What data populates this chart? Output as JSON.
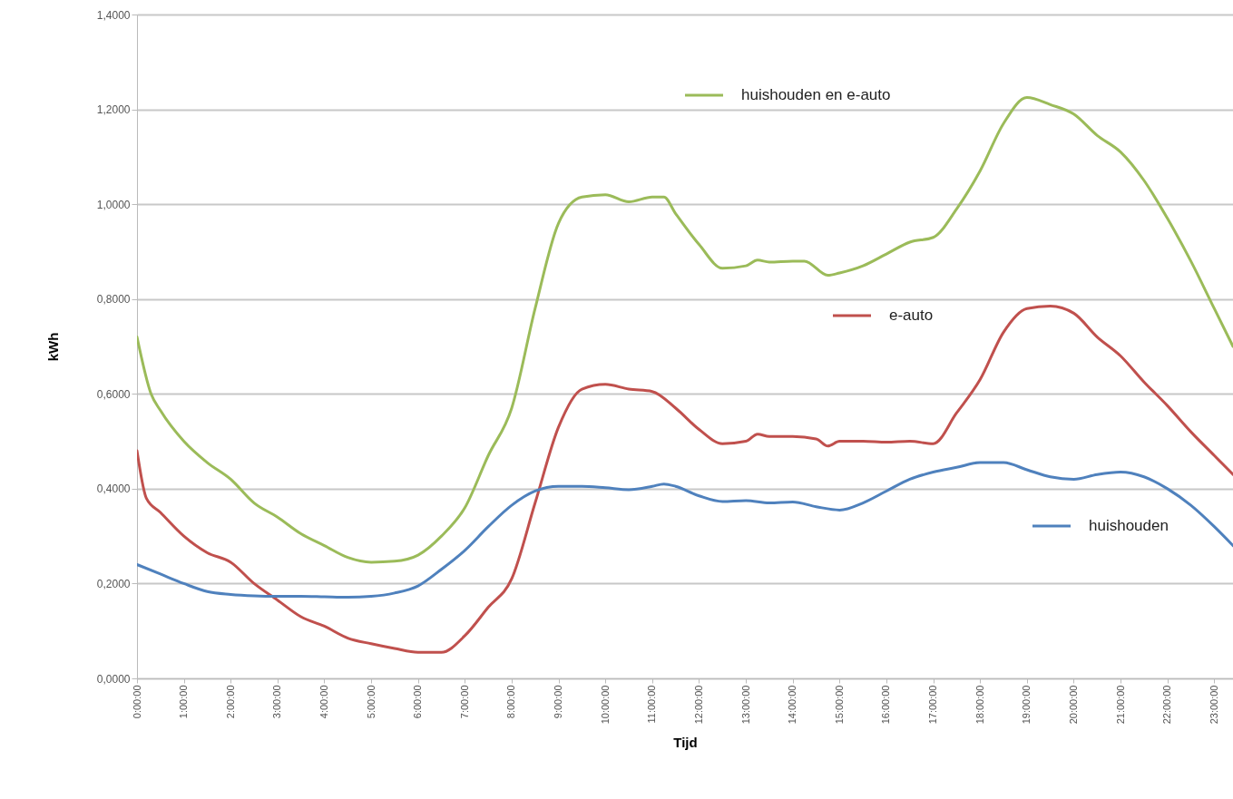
{
  "chart_data": {
    "type": "line",
    "xlabel": "Tijd",
    "ylabel": "kWh",
    "xlim": [
      0,
      23.4
    ],
    "ylim": [
      0,
      1.4
    ],
    "xticks": [
      {
        "value": 0,
        "label": "0:00:00"
      },
      {
        "value": 1,
        "label": "1:00:00"
      },
      {
        "value": 2,
        "label": "2:00:00"
      },
      {
        "value": 3,
        "label": "3:00:00"
      },
      {
        "value": 4,
        "label": "4:00:00"
      },
      {
        "value": 5,
        "label": "5:00:00"
      },
      {
        "value": 6,
        "label": "6:00:00"
      },
      {
        "value": 7,
        "label": "7:00:00"
      },
      {
        "value": 8,
        "label": "8:00:00"
      },
      {
        "value": 9,
        "label": "9:00:00"
      },
      {
        "value": 10,
        "label": "10:00:00"
      },
      {
        "value": 11,
        "label": "11:00:00"
      },
      {
        "value": 12,
        "label": "12:00:00"
      },
      {
        "value": 13,
        "label": "13:00:00"
      },
      {
        "value": 14,
        "label": "14:00:00"
      },
      {
        "value": 15,
        "label": "15:00:00"
      },
      {
        "value": 16,
        "label": "16:00:00"
      },
      {
        "value": 17,
        "label": "17:00:00"
      },
      {
        "value": 18,
        "label": "18:00:00"
      },
      {
        "value": 19,
        "label": "19:00:00"
      },
      {
        "value": 20,
        "label": "20:00:00"
      },
      {
        "value": 21,
        "label": "21:00:00"
      },
      {
        "value": 22,
        "label": "22:00:00"
      },
      {
        "value": 23,
        "label": "23:00:00"
      }
    ],
    "yticks": [
      {
        "value": 0,
        "label": "0,0000"
      },
      {
        "value": 0.2,
        "label": "0,2000"
      },
      {
        "value": 0.4,
        "label": "0,4000"
      },
      {
        "value": 0.6,
        "label": "0,6000"
      },
      {
        "value": 0.8,
        "label": "0,8000"
      },
      {
        "value": 1.0,
        "label": "1,0000"
      },
      {
        "value": 1.2,
        "label": "1,2000"
      },
      {
        "value": 1.4,
        "label": "1,4000"
      }
    ],
    "grid": "y",
    "legend": "right",
    "marker": "none",
    "line_style": "solid",
    "series": [
      {
        "name": "huishouden en e-auto",
        "color": "#9bbb59",
        "x": [
          0,
          0.3,
          0.5,
          1,
          1.5,
          2,
          2.5,
          3,
          3.5,
          4,
          4.5,
          5,
          5.5,
          6,
          6.5,
          7,
          7.5,
          8,
          8.5,
          9,
          9.5,
          10,
          10.5,
          11,
          11.25,
          11.5,
          12,
          12.5,
          13,
          13.25,
          13.5,
          14,
          14.25,
          14.75,
          15,
          15.5,
          16,
          16.5,
          17,
          17.5,
          18,
          18.5,
          19,
          19.5,
          20,
          20.5,
          21,
          21.5,
          22,
          22.5,
          23,
          23.4
        ],
        "values": [
          0.72,
          0.6,
          0.565,
          0.5,
          0.455,
          0.42,
          0.37,
          0.34,
          0.305,
          0.28,
          0.255,
          0.245,
          0.247,
          0.26,
          0.3,
          0.36,
          0.47,
          0.57,
          0.78,
          0.96,
          1.015,
          1.02,
          1.005,
          1.015,
          1.015,
          0.98,
          0.915,
          0.865,
          0.87,
          0.882,
          0.878,
          0.88,
          0.88,
          0.85,
          0.855,
          0.87,
          0.895,
          0.92,
          0.93,
          0.99,
          1.07,
          1.17,
          1.225,
          1.21,
          1.19,
          1.145,
          1.11,
          1.05,
          0.97,
          0.88,
          0.78,
          0.7
        ]
      },
      {
        "name": "e-auto",
        "color": "#c0504d",
        "x": [
          0,
          0.2,
          0.5,
          1,
          1.5,
          2,
          2.5,
          3,
          3.5,
          4,
          4.5,
          5,
          5.5,
          6,
          6.5,
          7,
          7.5,
          8,
          8.5,
          9,
          9.5,
          10,
          10.5,
          11,
          11.5,
          12,
          12.5,
          13,
          13.25,
          13.5,
          14,
          14.5,
          14.75,
          15,
          15.5,
          16,
          16.5,
          17,
          17.5,
          18,
          18.5,
          19,
          19.5,
          20,
          20.5,
          21,
          21.5,
          22,
          22.5,
          23,
          23.4
        ],
        "values": [
          0.48,
          0.38,
          0.35,
          0.3,
          0.265,
          0.245,
          0.2,
          0.165,
          0.13,
          0.11,
          0.085,
          0.073,
          0.063,
          0.055,
          0.055,
          0.09,
          0.15,
          0.21,
          0.37,
          0.53,
          0.61,
          0.62,
          0.61,
          0.605,
          0.57,
          0.525,
          0.495,
          0.5,
          0.515,
          0.51,
          0.51,
          0.505,
          0.49,
          0.5,
          0.5,
          0.498,
          0.5,
          0.495,
          0.56,
          0.63,
          0.73,
          0.78,
          0.785,
          0.77,
          0.72,
          0.68,
          0.625,
          0.575,
          0.52,
          0.47,
          0.43
        ]
      },
      {
        "name": "huishouden",
        "color": "#4f81bd",
        "x": [
          0,
          0.5,
          1,
          1.5,
          2,
          2.5,
          3,
          3.5,
          4,
          4.5,
          5,
          5.5,
          6,
          6.5,
          7,
          7.5,
          8,
          8.5,
          9,
          9.5,
          10,
          10.5,
          11,
          11.25,
          11.5,
          12,
          12.5,
          13,
          13.5,
          14,
          14.5,
          15,
          15.5,
          16,
          16.5,
          17,
          17.5,
          18,
          18.5,
          19,
          19.5,
          20,
          20.5,
          21,
          21.5,
          22,
          22.5,
          23,
          23.4
        ],
        "values": [
          0.24,
          0.22,
          0.2,
          0.183,
          0.177,
          0.174,
          0.173,
          0.173,
          0.172,
          0.171,
          0.173,
          0.18,
          0.195,
          0.23,
          0.27,
          0.32,
          0.365,
          0.395,
          0.405,
          0.405,
          0.402,
          0.398,
          0.405,
          0.41,
          0.405,
          0.385,
          0.373,
          0.375,
          0.37,
          0.372,
          0.362,
          0.355,
          0.37,
          0.395,
          0.42,
          0.435,
          0.445,
          0.455,
          0.455,
          0.44,
          0.425,
          0.42,
          0.43,
          0.435,
          0.425,
          0.4,
          0.365,
          0.32,
          0.28
        ]
      }
    ]
  }
}
